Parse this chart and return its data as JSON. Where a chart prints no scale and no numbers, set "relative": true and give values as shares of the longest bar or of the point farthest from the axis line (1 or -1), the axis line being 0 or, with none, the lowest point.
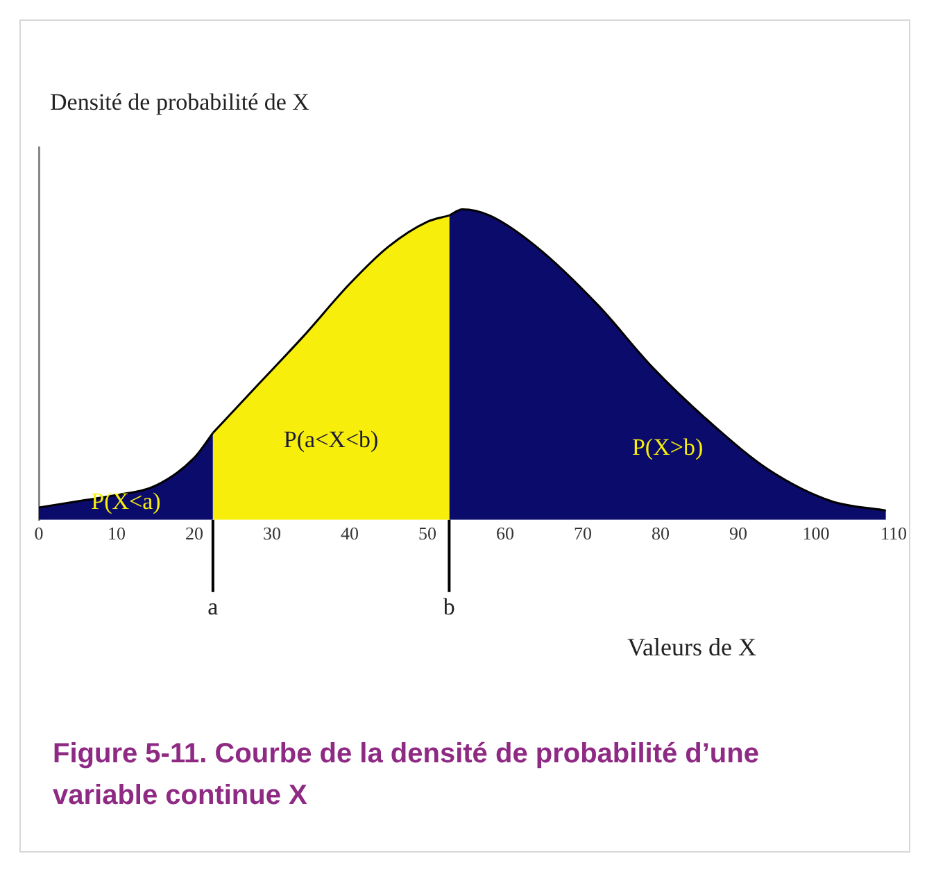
{
  "chart_data": {
    "type": "area",
    "title": "Figure 5-11. Courbe de la densité de probabilité d’une variable continue X",
    "xlabel": "Valeurs de X",
    "ylabel": "Densité de probabilité de X",
    "relative": true,
    "xlim": [
      0,
      110
    ],
    "xticks": [
      0,
      10,
      20,
      30,
      40,
      50,
      60,
      70,
      80,
      90,
      100,
      110
    ],
    "tick_labels": "x",
    "grid": false,
    "legend": false,
    "series": [
      {
        "color": "#0b0b6b",
        "x": [
          0,
          5,
          10,
          15,
          20,
          22.4
        ],
        "values": [
          0.04,
          0.06,
          0.08,
          0.11,
          0.2,
          0.28
        ]
      },
      {
        "color": "#f7ee0c",
        "x": [
          22.4,
          28,
          34,
          40,
          45,
          50,
          52.8
        ],
        "values": [
          0.28,
          0.43,
          0.59,
          0.76,
          0.88,
          0.96,
          0.98
        ]
      },
      {
        "color": "#0b0b6b",
        "x": [
          52.8,
          54.5,
          58,
          64,
          72,
          79,
          87,
          94,
          102,
          109
        ],
        "values": [
          0.98,
          1,
          0.98,
          0.88,
          0.69,
          0.49,
          0.3,
          0.16,
          0.06,
          0.03
        ]
      }
    ],
    "ref_lines": [
      {
        "axis": "x",
        "value": 22.4,
        "label": "a"
      },
      {
        "axis": "x",
        "value": 52.8,
        "label": "b"
      }
    ],
    "annotations": [
      "P(X<a)",
      "P(a<X<b)",
      "P(X>b)"
    ]
  }
}
